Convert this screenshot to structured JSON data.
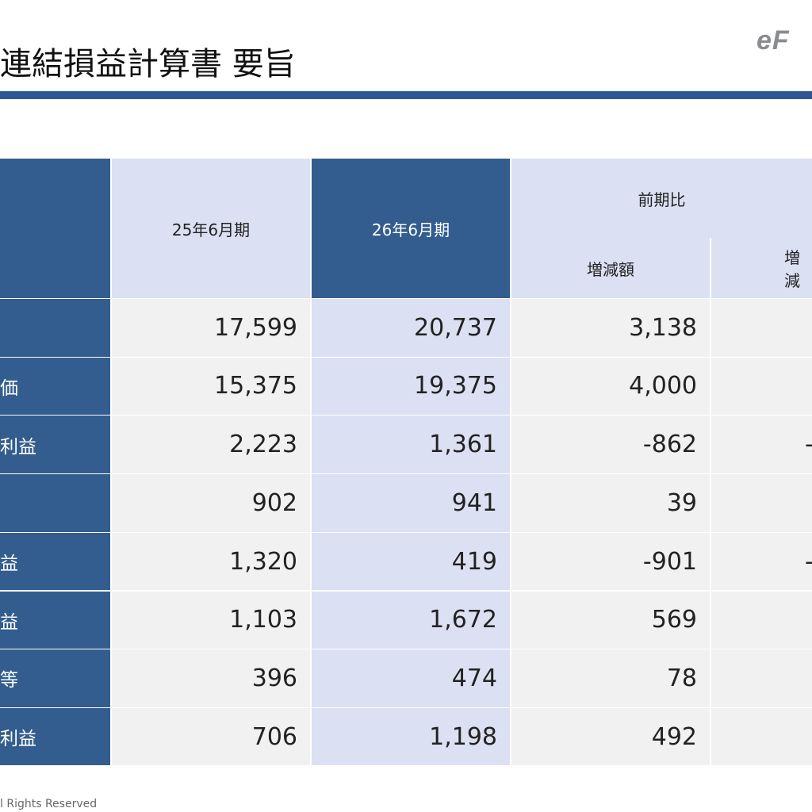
{
  "header": {
    "title": "連結損益計算書 要旨",
    "logo_text": "eF"
  },
  "table": {
    "col_headers": {
      "prev_period": "25年6月期",
      "curr_period": "26年6月期",
      "comparison": "前期比",
      "change_amount": "増減額",
      "change_rate_partial": "増減"
    },
    "rows": [
      {
        "label": "",
        "prev": "17,599",
        "curr": "20,737",
        "change": "3,138",
        "rate": ""
      },
      {
        "label": "価",
        "prev": "15,375",
        "curr": "19,375",
        "change": "4,000",
        "rate": ""
      },
      {
        "label": "利益",
        "prev": "2,223",
        "curr": "1,361",
        "change": "-862",
        "rate": "-"
      },
      {
        "label": "",
        "prev": "902",
        "curr": "941",
        "change": "39",
        "rate": ""
      },
      {
        "label": "益",
        "prev": "1,320",
        "curr": "419",
        "change": "-901",
        "rate": "-"
      },
      {
        "label": "益",
        "prev": "1,103",
        "curr": "1,672",
        "change": "569",
        "rate": ""
      },
      {
        "label": "等",
        "prev": "396",
        "curr": "474",
        "change": "78",
        "rate": ""
      },
      {
        "label": "利益",
        "prev": "706",
        "curr": "1,198",
        "change": "492",
        "rate": ""
      }
    ]
  },
  "footer": {
    "copyright_partial": "l Rights Reserved"
  },
  "colors": {
    "accent_blue": "#2f5597",
    "header_dark": "#335d8e",
    "header_light": "#dbe1f3",
    "row_gray": "#f1f1f1"
  }
}
